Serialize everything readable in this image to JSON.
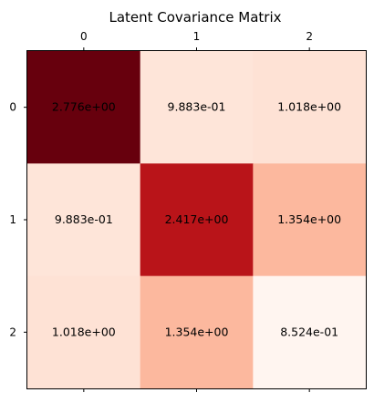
{
  "chart_data": {
    "type": "heatmap",
    "title": "Latent Covariance Matrix",
    "x_ticks": [
      "0",
      "1",
      "2"
    ],
    "y_ticks": [
      "0",
      "1",
      "2"
    ],
    "x_tick_position": "top",
    "y_tick_position": "left",
    "grid": false,
    "colormap": "Reds",
    "values": [
      [
        2.776,
        0.9883,
        1.018
      ],
      [
        0.9883,
        2.417,
        1.354
      ],
      [
        1.018,
        1.354,
        0.8524
      ]
    ],
    "labels": [
      [
        "2.776e+00",
        "9.883e-01",
        "1.018e+00"
      ],
      [
        "9.883e-01",
        "2.417e+00",
        "1.354e+00"
      ],
      [
        "1.018e+00",
        "1.354e+00",
        "8.524e-01"
      ]
    ],
    "colors": [
      [
        "#67000d",
        "#fee5d9",
        "#fee2d5"
      ],
      [
        "#fee5d9",
        "#b91419",
        "#fcb89e"
      ],
      [
        "#fee2d5",
        "#fcb89e",
        "#fff5f0"
      ]
    ]
  }
}
